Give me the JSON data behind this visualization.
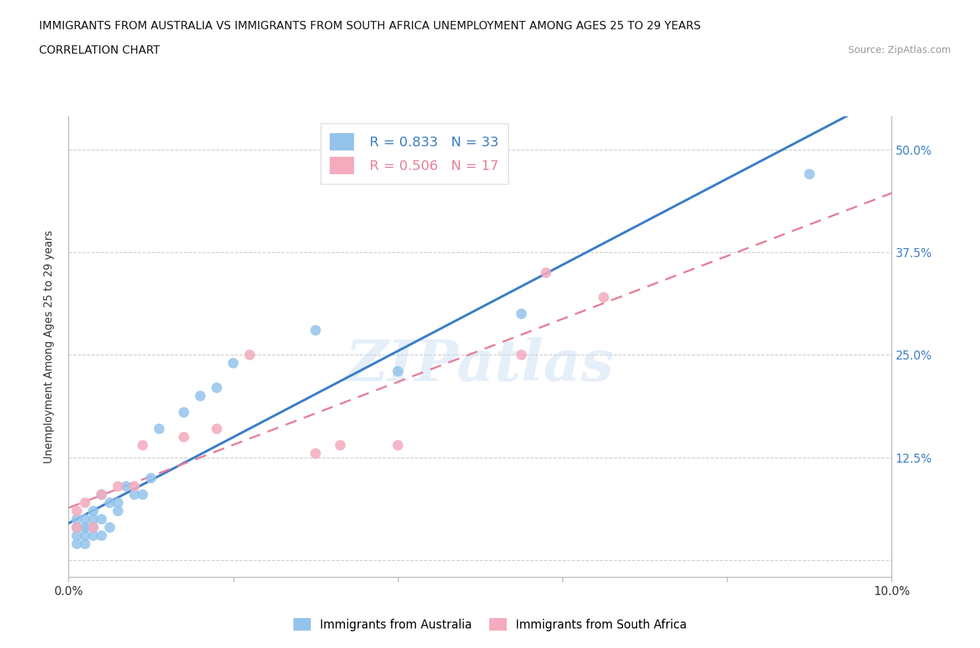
{
  "title_line1": "IMMIGRANTS FROM AUSTRALIA VS IMMIGRANTS FROM SOUTH AFRICA UNEMPLOYMENT AMONG AGES 25 TO 29 YEARS",
  "title_line2": "CORRELATION CHART",
  "source": "Source: ZipAtlas.com",
  "ylabel": "Unemployment Among Ages 25 to 29 years",
  "xlim": [
    0.0,
    0.1
  ],
  "ylim": [
    -0.02,
    0.54
  ],
  "yticks": [
    0.0,
    0.125,
    0.25,
    0.375,
    0.5
  ],
  "ytick_labels": [
    "",
    "12.5%",
    "25.0%",
    "37.5%",
    "50.0%"
  ],
  "xticks": [
    0.0,
    0.02,
    0.04,
    0.06,
    0.08,
    0.1
  ],
  "xtick_labels": [
    "0.0%",
    "",
    "",
    "",
    "",
    "10.0%"
  ],
  "australia_color": "#94C4EC",
  "south_africa_color": "#F4ABBE",
  "australia_line_color": "#3C7EC8",
  "south_africa_line_color": "#E88098",
  "watermark": "ZIPatlas",
  "australia_R": "0.833",
  "australia_N": "33",
  "south_africa_R": "0.506",
  "south_africa_N": "17",
  "australia_x": [
    0.001,
    0.001,
    0.001,
    0.001,
    0.002,
    0.002,
    0.002,
    0.002,
    0.002,
    0.003,
    0.003,
    0.003,
    0.003,
    0.004,
    0.004,
    0.004,
    0.005,
    0.005,
    0.006,
    0.006,
    0.007,
    0.008,
    0.009,
    0.01,
    0.011,
    0.014,
    0.016,
    0.018,
    0.02,
    0.03,
    0.04,
    0.055,
    0.09
  ],
  "australia_y": [
    0.02,
    0.03,
    0.04,
    0.05,
    0.02,
    0.03,
    0.04,
    0.04,
    0.05,
    0.03,
    0.04,
    0.05,
    0.06,
    0.03,
    0.05,
    0.08,
    0.04,
    0.07,
    0.06,
    0.07,
    0.09,
    0.08,
    0.08,
    0.1,
    0.16,
    0.18,
    0.2,
    0.21,
    0.24,
    0.28,
    0.23,
    0.3,
    0.47
  ],
  "south_africa_x": [
    0.001,
    0.001,
    0.002,
    0.003,
    0.004,
    0.006,
    0.008,
    0.009,
    0.014,
    0.018,
    0.022,
    0.03,
    0.033,
    0.04,
    0.055,
    0.058,
    0.065
  ],
  "south_africa_y": [
    0.04,
    0.06,
    0.07,
    0.04,
    0.08,
    0.09,
    0.09,
    0.14,
    0.15,
    0.16,
    0.25,
    0.13,
    0.14,
    0.14,
    0.25,
    0.35,
    0.32
  ]
}
